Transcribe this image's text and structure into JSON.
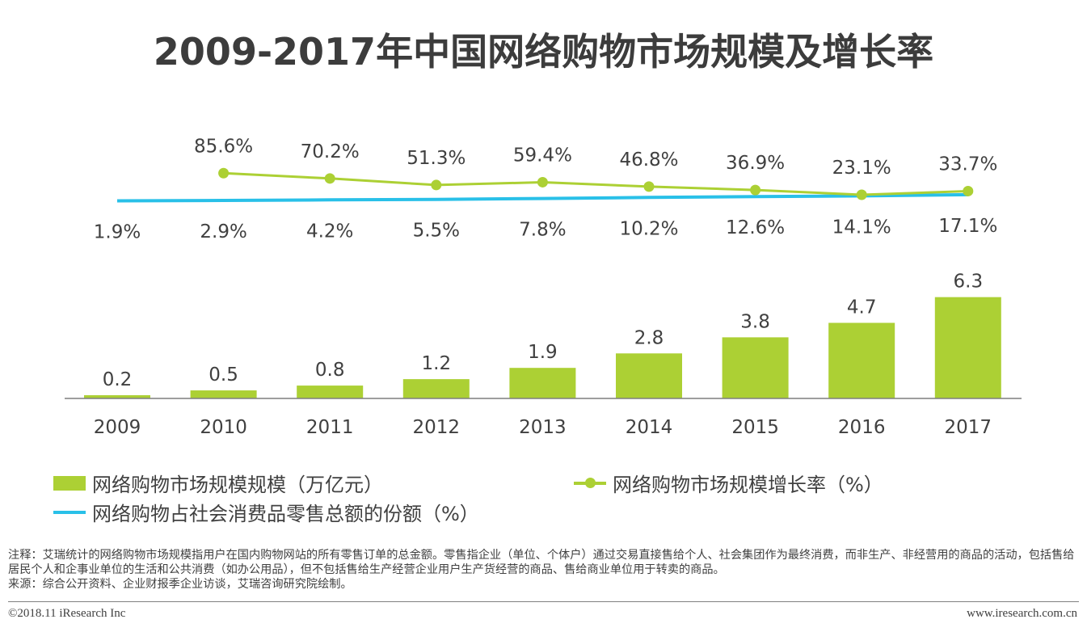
{
  "title": "2009-2017年中国网络购物市场规模及增长率",
  "chart_data": {
    "type": "bar+line",
    "categories": [
      "2009",
      "2010",
      "2011",
      "2012",
      "2013",
      "2014",
      "2015",
      "2016",
      "2017"
    ],
    "series": [
      {
        "name": "网络购物市场规模规模（万亿元）",
        "type": "bar",
        "values": [
          0.2,
          0.5,
          0.8,
          1.2,
          1.9,
          2.8,
          3.8,
          4.7,
          6.3
        ],
        "labels": [
          "0.2",
          "0.5",
          "0.8",
          "1.2",
          "1.9",
          "2.8",
          "3.8",
          "4.7",
          "6.3"
        ]
      },
      {
        "name": "网络购物市场规模增长率（%）",
        "type": "line",
        "values": [
          null,
          85.6,
          70.2,
          51.3,
          59.4,
          46.8,
          36.9,
          23.1,
          33.7
        ],
        "labels": [
          "",
          "85.6%",
          "70.2%",
          "51.3%",
          "59.4%",
          "46.8%",
          "36.9%",
          "23.1%",
          "33.7%"
        ]
      },
      {
        "name": "网络购物占社会消费品零售总额的份额（%）",
        "type": "line",
        "values": [
          1.9,
          2.9,
          4.2,
          5.5,
          7.8,
          10.2,
          12.6,
          14.1,
          17.1
        ],
        "labels": [
          "1.9%",
          "2.9%",
          "4.2%",
          "5.5%",
          "7.8%",
          "10.2%",
          "12.6%",
          "14.1%",
          "17.1%"
        ]
      }
    ],
    "colors": {
      "bar": "#acd034",
      "growth": "#acd034",
      "share": "#29c0e8",
      "axis": "#7f7f7f"
    }
  },
  "legend": {
    "bar": "网络购物市场规模规模（万亿元）",
    "growth": "网络购物市场规模增长率（%）",
    "share": "网络购物占社会消费品零售总额的份额（%）"
  },
  "note": {
    "line1": "注释：艾瑞统计的网络购物市场规模指用户在国内购物网站的所有零售订单的总金额。零售指企业（单位、个体户）通过交易直接售给个人、社会集团作为最终消费，而非生产、非经营用的商品的活动，包括售给居民个人和企事业单位的生活和公共消费（如办公用品），但不包括售给生产经营企业用户生产货经营的商品、售给商业单位用于转卖的商品。",
    "line2": "来源：综合公开资料、企业财报季企业访谈，艾瑞咨询研究院绘制。"
  },
  "footer": {
    "copyright": "©2018.11 iResearch Inc",
    "url": "www.iresearch.com.cn"
  }
}
